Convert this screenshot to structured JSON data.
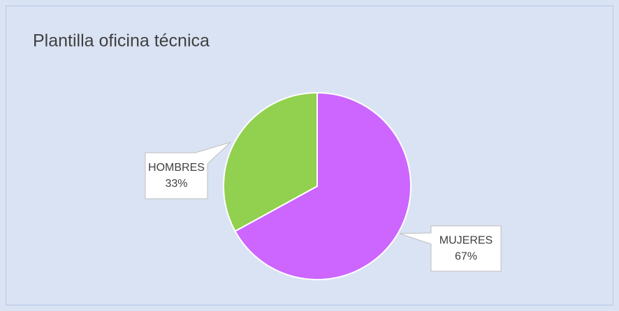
{
  "chart_data": {
    "type": "pie",
    "title": "Plantilla oficina técnica",
    "categories": [
      "MUJERES",
      "HOMBRES"
    ],
    "values": [
      67,
      33
    ],
    "value_labels": [
      "67%",
      "33%"
    ],
    "colors": [
      "#cc66ff",
      "#92d050"
    ]
  }
}
